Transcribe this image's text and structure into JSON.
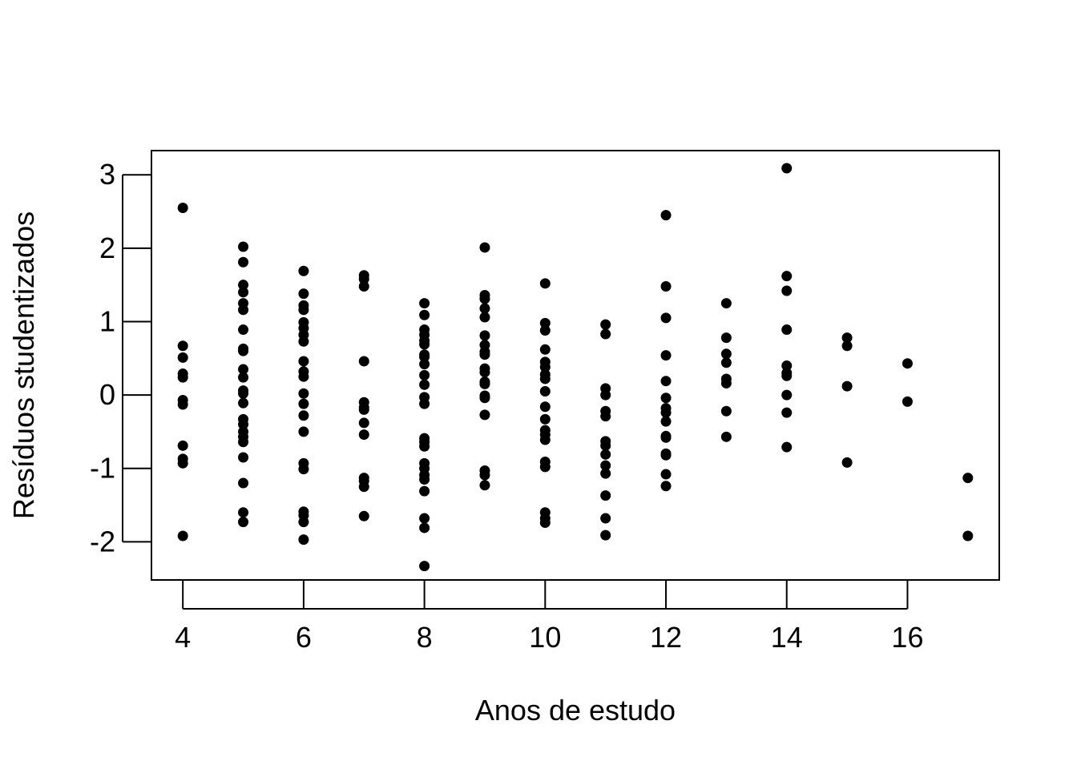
{
  "chart_data": {
    "type": "scatter",
    "title": "",
    "xlabel": "Anos de estudo",
    "ylabel": "Resíduos studentizados",
    "xlim": [
      3.48,
      17.52
    ],
    "ylim": [
      -2.52,
      3.33
    ],
    "x_ticks": [
      4,
      6,
      8,
      10,
      12,
      14,
      16
    ],
    "y_ticks": [
      -2,
      -1,
      0,
      1,
      2,
      3
    ],
    "x_tick_labels": [
      "4",
      "6",
      "8",
      "10",
      "12",
      "14",
      "16"
    ],
    "y_tick_labels": [
      "-2",
      "-1",
      "0",
      "1",
      "2",
      "3"
    ],
    "grid": false,
    "legend": "none",
    "point_color": "#000000",
    "series": [
      {
        "points": [
          {
            "x": 4,
            "y": 2.55
          },
          {
            "x": 4,
            "y": 0.67
          },
          {
            "x": 4,
            "y": 0.51
          },
          {
            "x": 4,
            "y": 0.29
          },
          {
            "x": 4,
            "y": 0.24
          },
          {
            "x": 4,
            "y": -0.07
          },
          {
            "x": 4,
            "y": -0.13
          },
          {
            "x": 4,
            "y": -0.69
          },
          {
            "x": 4,
            "y": -0.87
          },
          {
            "x": 4,
            "y": -0.93
          },
          {
            "x": 4,
            "y": -1.92
          },
          {
            "x": 5,
            "y": 2.02
          },
          {
            "x": 5,
            "y": 1.81
          },
          {
            "x": 5,
            "y": 1.5
          },
          {
            "x": 5,
            "y": 1.4
          },
          {
            "x": 5,
            "y": 1.25
          },
          {
            "x": 5,
            "y": 1.16
          },
          {
            "x": 5,
            "y": 0.89
          },
          {
            "x": 5,
            "y": 0.63
          },
          {
            "x": 5,
            "y": 0.6
          },
          {
            "x": 5,
            "y": 0.35
          },
          {
            "x": 5,
            "y": 0.24
          },
          {
            "x": 5,
            "y": 0.06
          },
          {
            "x": 5,
            "y": 0.02
          },
          {
            "x": 5,
            "y": -0.11
          },
          {
            "x": 5,
            "y": -0.33
          },
          {
            "x": 5,
            "y": -0.4
          },
          {
            "x": 5,
            "y": -0.5
          },
          {
            "x": 5,
            "y": -0.57
          },
          {
            "x": 5,
            "y": -0.64
          },
          {
            "x": 5,
            "y": -0.85
          },
          {
            "x": 5,
            "y": -1.2
          },
          {
            "x": 5,
            "y": -1.6
          },
          {
            "x": 5,
            "y": -1.73
          },
          {
            "x": 6,
            "y": 1.69
          },
          {
            "x": 6,
            "y": 1.38
          },
          {
            "x": 6,
            "y": 1.22
          },
          {
            "x": 6,
            "y": 1.16
          },
          {
            "x": 6,
            "y": 0.99
          },
          {
            "x": 6,
            "y": 0.91
          },
          {
            "x": 6,
            "y": 0.82
          },
          {
            "x": 6,
            "y": 0.73
          },
          {
            "x": 6,
            "y": 0.46
          },
          {
            "x": 6,
            "y": 0.32
          },
          {
            "x": 6,
            "y": 0.25
          },
          {
            "x": 6,
            "y": 0.02
          },
          {
            "x": 6,
            "y": -0.12
          },
          {
            "x": 6,
            "y": -0.28
          },
          {
            "x": 6,
            "y": -0.5
          },
          {
            "x": 6,
            "y": -0.93
          },
          {
            "x": 6,
            "y": -1.01
          },
          {
            "x": 6,
            "y": -1.59
          },
          {
            "x": 6,
            "y": -1.64
          },
          {
            "x": 6,
            "y": -1.73
          },
          {
            "x": 6,
            "y": -1.97
          },
          {
            "x": 7,
            "y": 1.63
          },
          {
            "x": 7,
            "y": 1.58
          },
          {
            "x": 7,
            "y": 1.48
          },
          {
            "x": 7,
            "y": 0.46
          },
          {
            "x": 7,
            "y": -0.1
          },
          {
            "x": 7,
            "y": -0.17
          },
          {
            "x": 7,
            "y": -0.2
          },
          {
            "x": 7,
            "y": -0.38
          },
          {
            "x": 7,
            "y": -0.54
          },
          {
            "x": 7,
            "y": -1.13
          },
          {
            "x": 7,
            "y": -1.17
          },
          {
            "x": 7,
            "y": -1.25
          },
          {
            "x": 7,
            "y": -1.65
          },
          {
            "x": 8,
            "y": 1.25
          },
          {
            "x": 8,
            "y": 1.09
          },
          {
            "x": 8,
            "y": 0.89
          },
          {
            "x": 8,
            "y": 0.82
          },
          {
            "x": 8,
            "y": 0.74
          },
          {
            "x": 8,
            "y": 0.69
          },
          {
            "x": 8,
            "y": 0.55
          },
          {
            "x": 8,
            "y": 0.52
          },
          {
            "x": 8,
            "y": 0.42
          },
          {
            "x": 8,
            "y": 0.27
          },
          {
            "x": 8,
            "y": 0.14
          },
          {
            "x": 8,
            "y": -0.03
          },
          {
            "x": 8,
            "y": -0.12
          },
          {
            "x": 8,
            "y": -0.59
          },
          {
            "x": 8,
            "y": -0.64
          },
          {
            "x": 8,
            "y": -0.7
          },
          {
            "x": 8,
            "y": -0.93
          },
          {
            "x": 8,
            "y": -1.0
          },
          {
            "x": 8,
            "y": -1.09
          },
          {
            "x": 8,
            "y": -1.15
          },
          {
            "x": 8,
            "y": -1.31
          },
          {
            "x": 8,
            "y": -1.68
          },
          {
            "x": 8,
            "y": -1.81
          },
          {
            "x": 8,
            "y": -2.33
          },
          {
            "x": 9,
            "y": 2.01
          },
          {
            "x": 9,
            "y": 1.36
          },
          {
            "x": 9,
            "y": 1.31
          },
          {
            "x": 9,
            "y": 1.18
          },
          {
            "x": 9,
            "y": 1.06
          },
          {
            "x": 9,
            "y": 0.81
          },
          {
            "x": 9,
            "y": 0.68
          },
          {
            "x": 9,
            "y": 0.59
          },
          {
            "x": 9,
            "y": 0.55
          },
          {
            "x": 9,
            "y": 0.36
          },
          {
            "x": 9,
            "y": 0.31
          },
          {
            "x": 9,
            "y": 0.18
          },
          {
            "x": 9,
            "y": 0.15
          },
          {
            "x": 9,
            "y": -0.01
          },
          {
            "x": 9,
            "y": -0.04
          },
          {
            "x": 9,
            "y": -0.27
          },
          {
            "x": 9,
            "y": -1.03
          },
          {
            "x": 9,
            "y": -1.09
          },
          {
            "x": 9,
            "y": -1.23
          },
          {
            "x": 10,
            "y": 1.52
          },
          {
            "x": 10,
            "y": 0.98
          },
          {
            "x": 10,
            "y": 0.88
          },
          {
            "x": 10,
            "y": 0.62
          },
          {
            "x": 10,
            "y": 0.45
          },
          {
            "x": 10,
            "y": 0.38
          },
          {
            "x": 10,
            "y": 0.28
          },
          {
            "x": 10,
            "y": 0.22
          },
          {
            "x": 10,
            "y": 0.05
          },
          {
            "x": 10,
            "y": -0.16
          },
          {
            "x": 10,
            "y": -0.33
          },
          {
            "x": 10,
            "y": -0.48
          },
          {
            "x": 10,
            "y": -0.54
          },
          {
            "x": 10,
            "y": -0.61
          },
          {
            "x": 10,
            "y": -0.91
          },
          {
            "x": 10,
            "y": -0.98
          },
          {
            "x": 10,
            "y": -1.6
          },
          {
            "x": 10,
            "y": -1.68
          },
          {
            "x": 10,
            "y": -1.74
          },
          {
            "x": 11,
            "y": 0.96
          },
          {
            "x": 11,
            "y": 0.83
          },
          {
            "x": 11,
            "y": 0.09
          },
          {
            "x": 11,
            "y": 0.0
          },
          {
            "x": 11,
            "y": -0.22
          },
          {
            "x": 11,
            "y": -0.29
          },
          {
            "x": 11,
            "y": -0.63
          },
          {
            "x": 11,
            "y": -0.69
          },
          {
            "x": 11,
            "y": -0.81
          },
          {
            "x": 11,
            "y": -0.96
          },
          {
            "x": 11,
            "y": -1.07
          },
          {
            "x": 11,
            "y": -1.37
          },
          {
            "x": 11,
            "y": -1.68
          },
          {
            "x": 11,
            "y": -1.91
          },
          {
            "x": 12,
            "y": 2.45
          },
          {
            "x": 12,
            "y": 1.48
          },
          {
            "x": 12,
            "y": 1.05
          },
          {
            "x": 12,
            "y": 0.54
          },
          {
            "x": 12,
            "y": 0.19
          },
          {
            "x": 12,
            "y": -0.04
          },
          {
            "x": 12,
            "y": -0.18
          },
          {
            "x": 12,
            "y": -0.24
          },
          {
            "x": 12,
            "y": -0.36
          },
          {
            "x": 12,
            "y": -0.56
          },
          {
            "x": 12,
            "y": -0.58
          },
          {
            "x": 12,
            "y": -0.8
          },
          {
            "x": 12,
            "y": -0.82
          },
          {
            "x": 12,
            "y": -1.08
          },
          {
            "x": 12,
            "y": -1.24
          },
          {
            "x": 13,
            "y": 1.25
          },
          {
            "x": 13,
            "y": 0.78
          },
          {
            "x": 13,
            "y": 0.56
          },
          {
            "x": 13,
            "y": 0.44
          },
          {
            "x": 13,
            "y": 0.22
          },
          {
            "x": 13,
            "y": 0.16
          },
          {
            "x": 13,
            "y": -0.22
          },
          {
            "x": 13,
            "y": -0.57
          },
          {
            "x": 14,
            "y": 3.09
          },
          {
            "x": 14,
            "y": 1.62
          },
          {
            "x": 14,
            "y": 1.42
          },
          {
            "x": 14,
            "y": 0.89
          },
          {
            "x": 14,
            "y": 0.4
          },
          {
            "x": 14,
            "y": 0.3
          },
          {
            "x": 14,
            "y": 0.26
          },
          {
            "x": 14,
            "y": 0.0
          },
          {
            "x": 14,
            "y": -0.24
          },
          {
            "x": 14,
            "y": -0.71
          },
          {
            "x": 15,
            "y": 0.78
          },
          {
            "x": 15,
            "y": 0.67
          },
          {
            "x": 15,
            "y": 0.12
          },
          {
            "x": 15,
            "y": -0.92
          },
          {
            "x": 16,
            "y": 0.43
          },
          {
            "x": 16,
            "y": -0.09
          },
          {
            "x": 17,
            "y": -1.13
          },
          {
            "x": 17,
            "y": -1.92
          }
        ]
      }
    ]
  }
}
